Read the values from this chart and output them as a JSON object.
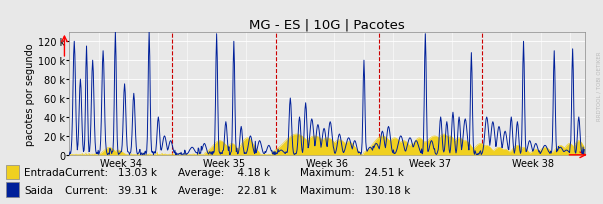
{
  "title": "MG - ES | 10G | Pacotes",
  "ylabel": "pacotes por segundo",
  "week_labels": [
    "Week 34",
    "Week 35",
    "Week 36",
    "Week 37",
    "Week 38"
  ],
  "yticks": [
    0,
    20000,
    40000,
    60000,
    80000,
    100000,
    120000
  ],
  "ymax": 130000,
  "bg_color": "#e8e8e8",
  "grid_color": "#ffffff",
  "entrada_color": "#f0d020",
  "saida_color": "#00209a",
  "entrada_label": "Entrada",
  "saida_label": "Saida",
  "entrada_current": "13.03 k",
  "entrada_average": "4.18 k",
  "entrada_max": "24.51 k",
  "saida_current": "39.31 k",
  "saida_average": "22.81 k",
  "saida_max": "130.18 k",
  "n_points": 840,
  "week_vlines": [
    168,
    336,
    504,
    672
  ]
}
